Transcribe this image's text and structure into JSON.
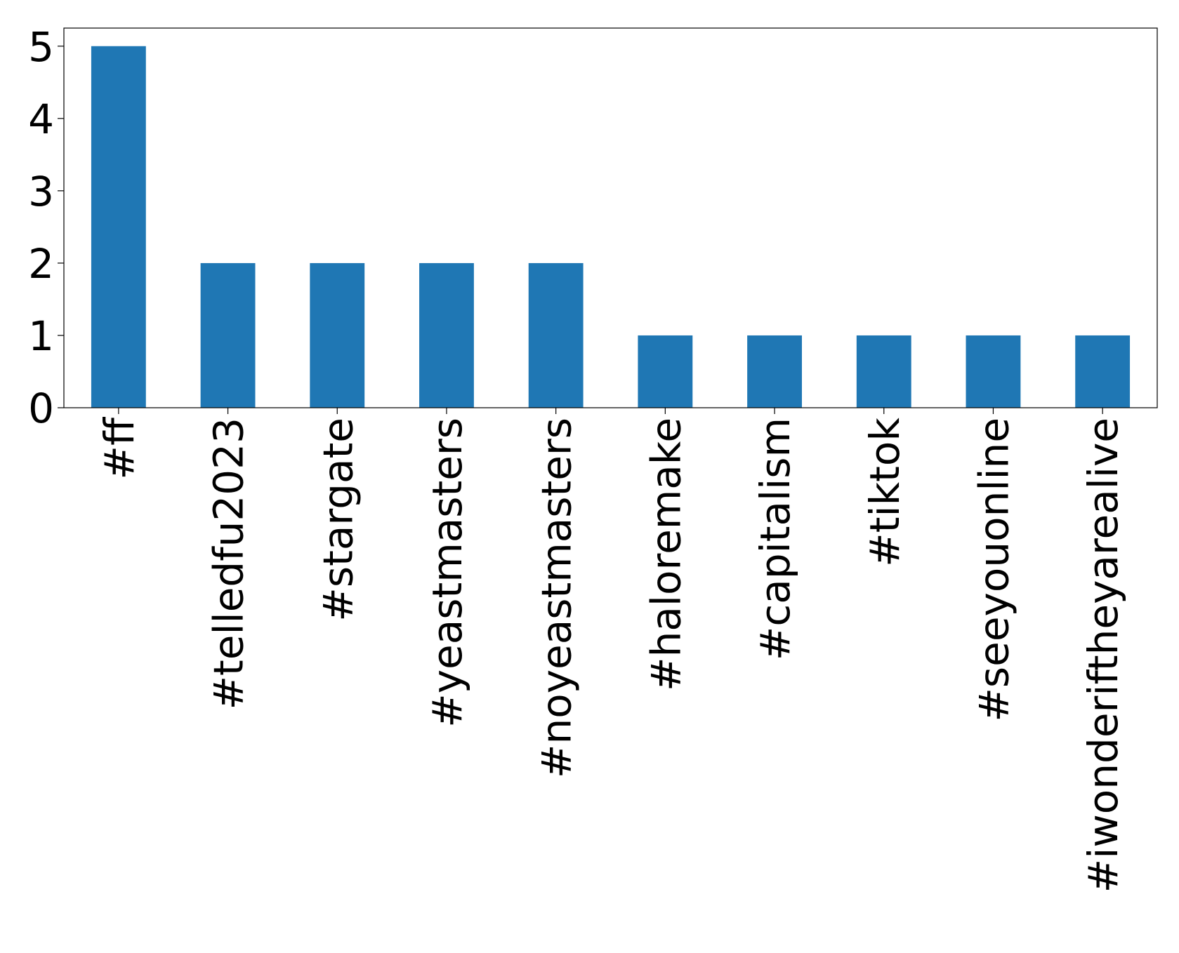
{
  "chart_data": {
    "type": "bar",
    "categories": [
      "#ff",
      "#telledfu2023",
      "#stargate",
      "#yeastmasters",
      "#noyeastmasters",
      "#haloremake",
      "#capitalism",
      "#tiktok",
      "#seeyouonline",
      "#iwonderiftheyarealive"
    ],
    "values": [
      5,
      2,
      2,
      2,
      2,
      1,
      1,
      1,
      1,
      1
    ],
    "color": "#1f77b4",
    "ylim": [
      0,
      5.25
    ],
    "yticks": [
      0,
      1,
      2,
      3,
      4,
      5
    ],
    "grid": false
  }
}
